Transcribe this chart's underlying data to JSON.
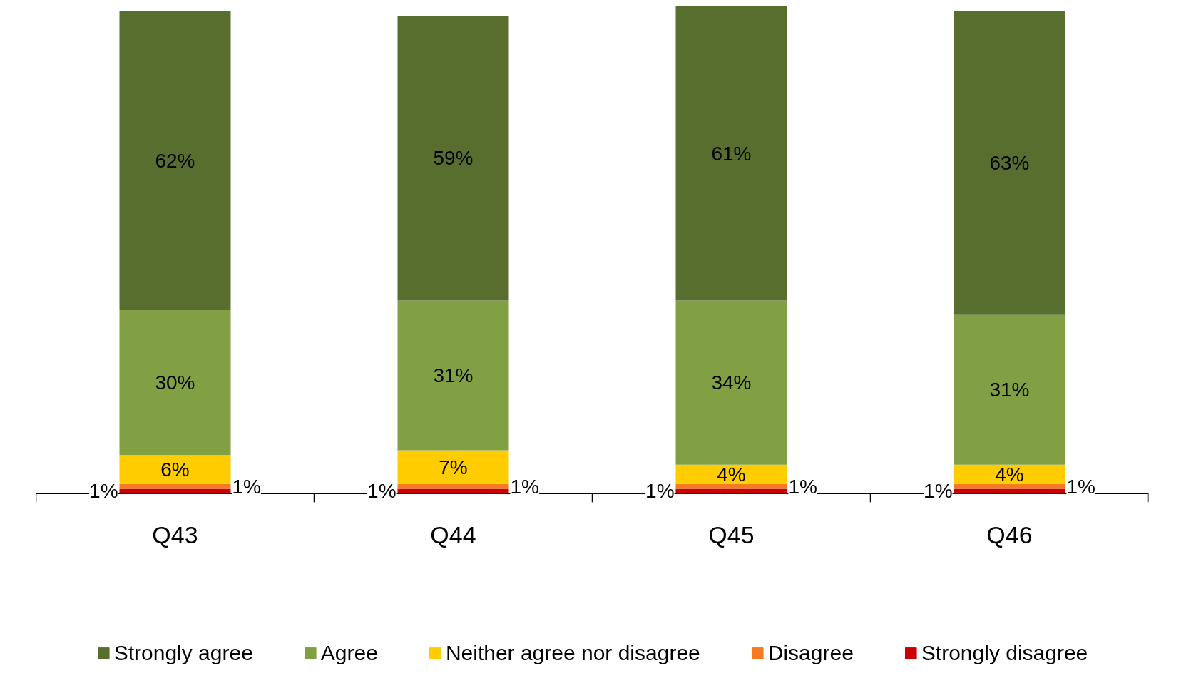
{
  "chart_data": {
    "type": "bar",
    "stacked": true,
    "legend": "bottom",
    "grid": false,
    "categories": [
      "Q43",
      "Q44",
      "Q45",
      "Q46"
    ],
    "series": [
      {
        "name": "Strongly disagree",
        "color": "#cc0000",
        "values": [
          1,
          1,
          1,
          1
        ],
        "value_labels": [
          "1%",
          "1%",
          "1%",
          "1%"
        ]
      },
      {
        "name": "Disagree",
        "color": "#f47b20",
        "values": [
          1,
          1,
          1,
          1
        ],
        "value_labels": [
          "1%",
          "1%",
          "1%",
          "1%"
        ]
      },
      {
        "name": "Neither agree nor disagree",
        "color": "#ffcc00",
        "values": [
          6,
          7,
          4,
          4
        ],
        "value_labels": [
          "6%",
          "7%",
          "4%",
          "4%"
        ]
      },
      {
        "name": "Agree",
        "color": "#80a043",
        "values": [
          30,
          31,
          34,
          31
        ],
        "value_labels": [
          "30%",
          "31%",
          "34%",
          "31%"
        ]
      },
      {
        "name": "Strongly agree",
        "color": "#586e2f",
        "values": [
          62,
          59,
          61,
          63
        ],
        "value_labels": [
          "62%",
          "59%",
          "61%",
          "63%"
        ]
      }
    ]
  }
}
